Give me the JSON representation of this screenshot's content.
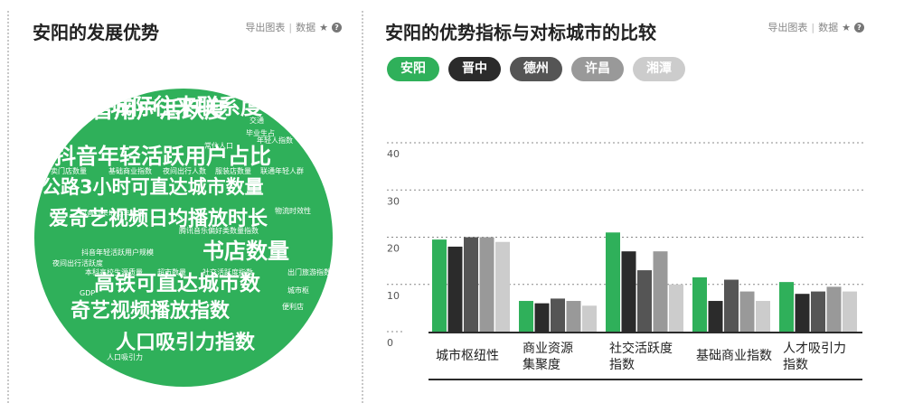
{
  "left": {
    "title": "安阳的发展优势",
    "toolbar": {
      "export": "导出图表",
      "data": "数据"
    },
    "word_cloud": [
      "抖音用户活跃度",
      "抖音年轻活跃用户占比",
      "公路3小时可直达城市数量",
      "爱奇艺视频日均播放时长",
      "书店数量",
      "高铁可直达城市数",
      "奇艺视频播放指数",
      "人口吸引力指数",
      "城际往来联系度",
      "外卖门店数量",
      "基础商业指数",
      "夜间出行人数",
      "服装店数量",
      "联通年轻人群",
      "抖音打卡地点丰富度",
      "腾讯音乐偏好类数量指数",
      "物流时效性",
      "抖音年轻活跃用户规模",
      "夜间出行活跃度",
      "本科高校生源质量",
      "超市数量",
      "社交活跃度指数",
      "出门旅游指数",
      "城市枢",
      "便利店",
      "人口吸引力",
      "交通",
      "毕业生占",
      "年轻人指数",
      "常住人口",
      "GDP"
    ]
  },
  "right": {
    "title": "安阳的优势指标与对标城市的比较",
    "toolbar": {
      "export": "导出图表",
      "data": "数据"
    },
    "pills": [
      {
        "label": "安阳",
        "color": "#2fb05a"
      },
      {
        "label": "晋中",
        "color": "#2b2b2b"
      },
      {
        "label": "德州",
        "color": "#555555"
      },
      {
        "label": "许昌",
        "color": "#999999"
      },
      {
        "label": "湘潭",
        "color": "#cccccc"
      }
    ]
  },
  "chart_data": {
    "type": "bar",
    "categories": [
      "城市枢纽性",
      "商业资源集聚度",
      "社交活跃度指数",
      "基础商业指数",
      "人才吸引力指数"
    ],
    "category_lines": [
      [
        "城市枢纽性"
      ],
      [
        "商业资源",
        "集聚度"
      ],
      [
        "社交活跃度",
        "指数"
      ],
      [
        "基础商业指数"
      ],
      [
        "人才吸引力",
        "指数"
      ]
    ],
    "series": [
      {
        "name": "安阳",
        "color": "#2fb05a",
        "values": [
          19.5,
          6.5,
          21,
          11.5,
          10.5
        ]
      },
      {
        "name": "晋中",
        "color": "#2b2b2b",
        "values": [
          18,
          6,
          17,
          6.5,
          8
        ]
      },
      {
        "name": "德州",
        "color": "#555555",
        "values": [
          20,
          7,
          13,
          11,
          8.5
        ]
      },
      {
        "name": "许昌",
        "color": "#999999",
        "values": [
          20,
          6.5,
          17,
          8.5,
          9.5
        ]
      },
      {
        "name": "湘潭",
        "color": "#cccccc",
        "values": [
          19,
          5.5,
          10,
          6.5,
          8.5
        ]
      }
    ],
    "yticks": [
      0,
      10,
      20,
      30,
      40
    ],
    "ylim": [
      0,
      40
    ],
    "grid": true
  }
}
